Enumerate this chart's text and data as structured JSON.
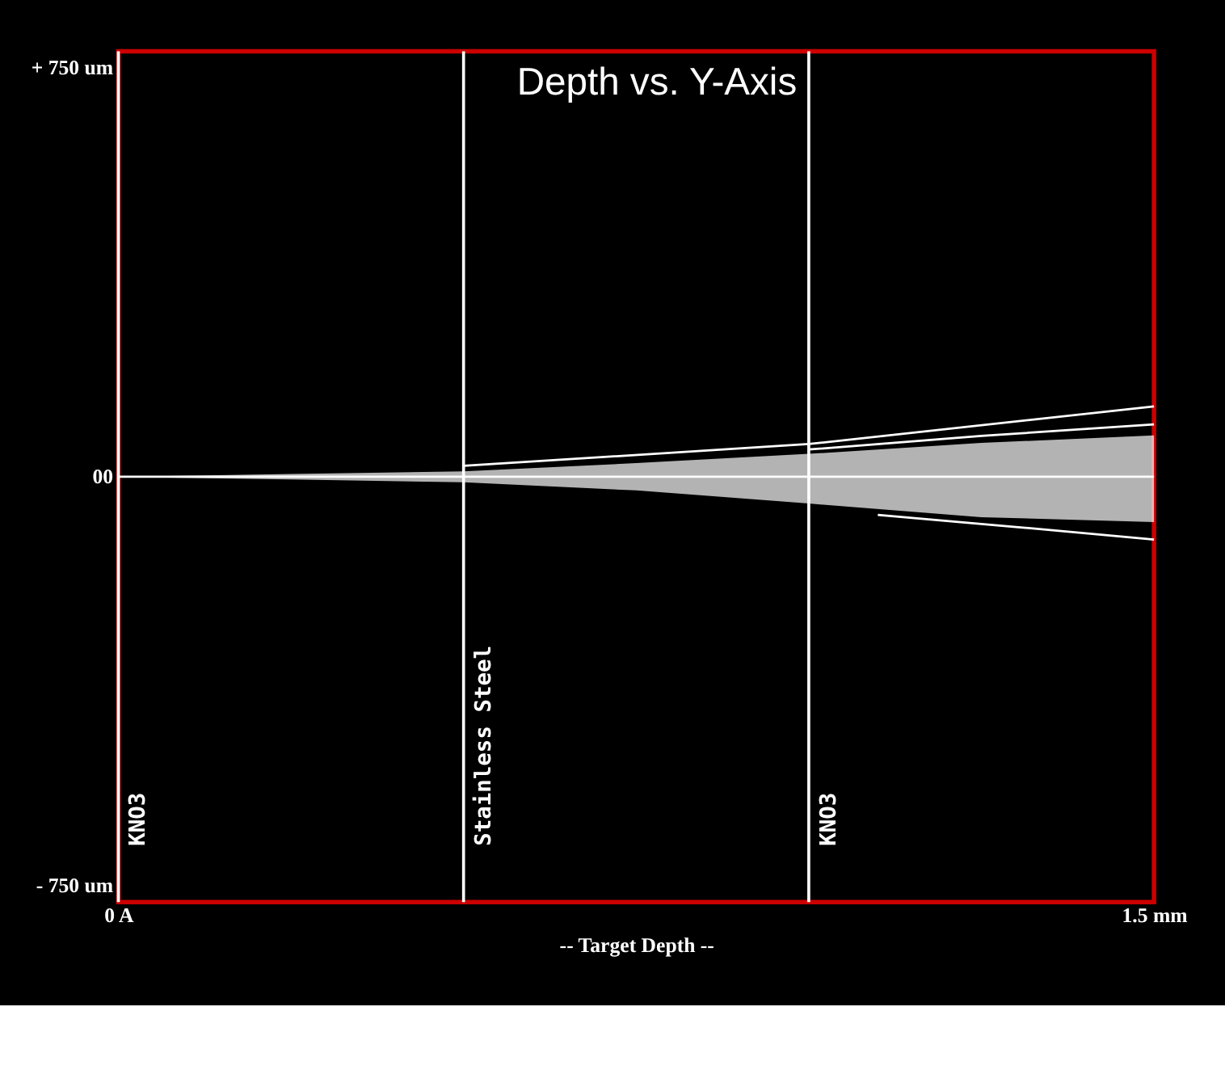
{
  "chart_data": {
    "type": "line",
    "title": "Depth vs. Y-Axis",
    "xlabel": "-- Target Depth --",
    "xlim": [
      0,
      1.5
    ],
    "xticks": [
      {
        "value": 0,
        "label": "0 A"
      },
      {
        "value": 1.5,
        "label": "1.5 mm"
      }
    ],
    "ylim": [
      -780,
      780
    ],
    "yticks": [
      {
        "value": 750,
        "label": "+ 750 um"
      },
      {
        "value": 0,
        "label": "00"
      },
      {
        "value": -750,
        "label": "- 750 um"
      }
    ],
    "series": [
      {
        "color": "#ffffff",
        "x": [
          0,
          0.25,
          0.5,
          0.75,
          1.0,
          1.25,
          1.5
        ],
        "values": [
          0,
          0,
          0,
          0,
          0,
          0,
          0
        ],
        "lower": [
          0,
          -5,
          -10,
          -25,
          -49,
          -74,
          -83
        ],
        "upper": [
          0,
          5,
          10,
          25,
          42,
          62,
          76
        ]
      },
      {
        "color": "#ffffff",
        "x": [
          0.5,
          1.0,
          1.5
        ],
        "values": [
          20,
          60,
          129
        ]
      },
      {
        "color": "#ffffff",
        "x": [
          1.0,
          1.25,
          1.5
        ],
        "values": [
          50,
          75,
          96
        ]
      },
      {
        "color": "#ffffff",
        "x": [
          1.1,
          1.3,
          1.5
        ],
        "values": [
          -70,
          -92,
          -115
        ]
      }
    ],
    "ref_lines": [
      {
        "axis": "x",
        "value": 0,
        "label": "KNO3",
        "color": "#ffffff"
      },
      {
        "axis": "x",
        "value": 0.5,
        "label": "Stainless Steel",
        "color": "#ffffff"
      },
      {
        "axis": "x",
        "value": 1.0,
        "label": "KNO3",
        "color": "#ffffff"
      }
    ],
    "grid": false,
    "marker": "none",
    "line_style": "solid"
  }
}
